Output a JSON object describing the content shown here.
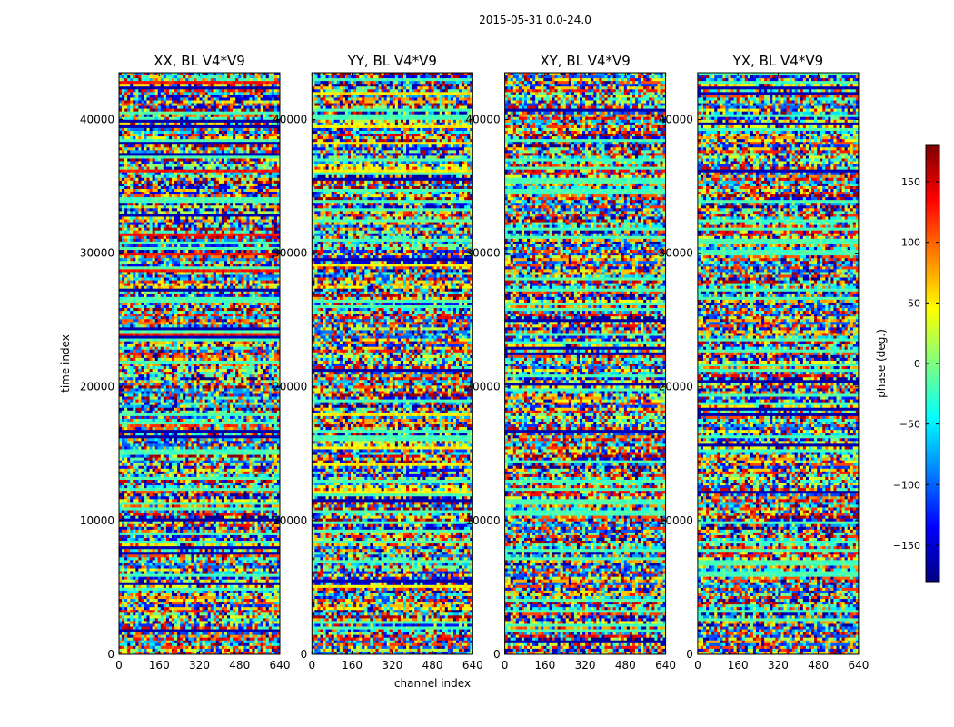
{
  "figure": {
    "suptitle": "2015-05-31 0.0-24.0",
    "xlabel": "channel index",
    "ylabel": "time index"
  },
  "colorbar": {
    "label": "phase (deg.)",
    "range": [
      -180,
      180
    ],
    "ticks": [
      150,
      100,
      50,
      0,
      -50,
      -100,
      -150
    ],
    "tick_labels": [
      "150",
      "100",
      "50",
      "0",
      "−50",
      "−100",
      "−150"
    ],
    "colormap": "jet",
    "colors": [
      "#00007f",
      "#0000ff",
      "#007fff",
      "#00ffff",
      "#7fff7f",
      "#ffff00",
      "#ff7f00",
      "#ff0000",
      "#7f0000"
    ]
  },
  "chart_data": [
    {
      "type": "heatmap",
      "title": "XX, BL V4*V9",
      "xlabel": "",
      "ylabel": "time index",
      "xlim": [
        0,
        640
      ],
      "ylim": [
        0,
        43500
      ],
      "xticks": [
        0,
        160,
        320,
        480,
        640
      ],
      "yticks": [
        0,
        10000,
        20000,
        30000,
        40000
      ],
      "value": "phase (deg.)",
      "value_range": [
        -180,
        180
      ]
    },
    {
      "type": "heatmap",
      "title": "YY, BL V4*V9",
      "xlabel": "channel index",
      "ylabel": "",
      "xlim": [
        0,
        640
      ],
      "ylim": [
        0,
        43500
      ],
      "xticks": [
        0,
        160,
        320,
        480,
        640
      ],
      "yticks": [
        0,
        10000,
        20000,
        30000,
        40000
      ],
      "value": "phase (deg.)",
      "value_range": [
        -180,
        180
      ]
    },
    {
      "type": "heatmap",
      "title": "XY, BL V4*V9",
      "xlabel": "",
      "ylabel": "",
      "xlim": [
        0,
        640
      ],
      "ylim": [
        0,
        43500
      ],
      "xticks": [
        0,
        160,
        320,
        480,
        640
      ],
      "yticks": [
        0,
        10000,
        20000,
        30000,
        40000
      ],
      "value": "phase (deg.)",
      "value_range": [
        -180,
        180
      ]
    },
    {
      "type": "heatmap",
      "title": "YX, BL V4*V9",
      "xlabel": "",
      "ylabel": "",
      "xlim": [
        0,
        640
      ],
      "ylim": [
        0,
        43500
      ],
      "xticks": [
        0,
        160,
        320,
        480,
        640
      ],
      "yticks": [
        0,
        10000,
        20000,
        30000,
        40000
      ],
      "value": "phase (deg.)",
      "value_range": [
        -180,
        180
      ]
    }
  ]
}
